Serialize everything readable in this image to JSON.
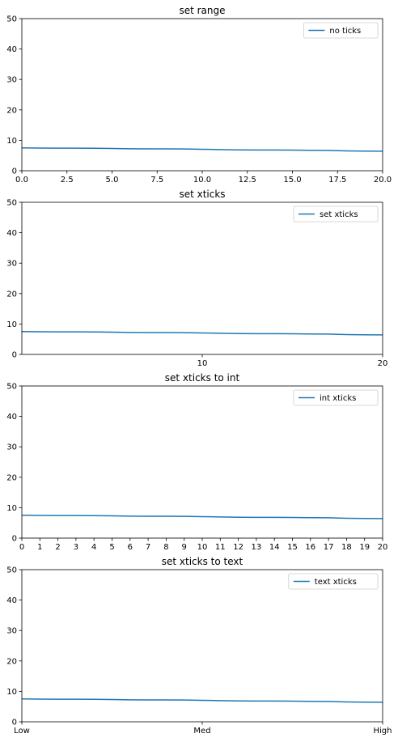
{
  "chart_data": [
    {
      "type": "line",
      "title": "set range",
      "xlabel": "",
      "ylabel": "",
      "xlim": [
        0,
        20
      ],
      "ylim": [
        0,
        50
      ],
      "xticks": [
        0,
        2.5,
        5,
        7.5,
        10,
        12.5,
        15,
        17.5,
        20
      ],
      "xticklabels": [
        "0.0",
        "2.5",
        "5.0",
        "7.5",
        "10.0",
        "12.5",
        "15.0",
        "17.5",
        "20.0"
      ],
      "yticks": [
        0,
        10,
        20,
        30,
        40,
        50
      ],
      "yticklabels": [
        "0",
        "10",
        "20",
        "30",
        "40",
        "50"
      ],
      "legend": "upper right",
      "grid": false,
      "series": [
        {
          "name": "no ticks",
          "color": "#1f77b4",
          "x": [
            0,
            1,
            2,
            3,
            4,
            5,
            6,
            7,
            8,
            9,
            10,
            11,
            12,
            13,
            14,
            15,
            16,
            17,
            18,
            19,
            20
          ],
          "values": [
            7.5,
            7.45,
            7.42,
            7.4,
            7.38,
            7.3,
            7.2,
            7.18,
            7.17,
            7.15,
            7.05,
            6.95,
            6.85,
            6.82,
            6.8,
            6.78,
            6.72,
            6.68,
            6.5,
            6.45,
            6.42
          ]
        }
      ]
    },
    {
      "type": "line",
      "title": "set xticks",
      "xlabel": "",
      "ylabel": "",
      "xlim": [
        0,
        20
      ],
      "ylim": [
        0,
        50
      ],
      "xticks": [
        10,
        20
      ],
      "xticklabels": [
        "10",
        "20"
      ],
      "yticks": [
        0,
        10,
        20,
        30,
        40,
        50
      ],
      "yticklabels": [
        "0",
        "10",
        "20",
        "30",
        "40",
        "50"
      ],
      "legend": "upper right",
      "grid": false,
      "series": [
        {
          "name": "set xticks",
          "color": "#1f77b4",
          "x": [
            0,
            1,
            2,
            3,
            4,
            5,
            6,
            7,
            8,
            9,
            10,
            11,
            12,
            13,
            14,
            15,
            16,
            17,
            18,
            19,
            20
          ],
          "values": [
            7.5,
            7.45,
            7.42,
            7.4,
            7.38,
            7.3,
            7.2,
            7.18,
            7.17,
            7.15,
            7.05,
            6.95,
            6.85,
            6.82,
            6.8,
            6.78,
            6.72,
            6.68,
            6.5,
            6.45,
            6.42
          ]
        }
      ]
    },
    {
      "type": "line",
      "title": "set xticks to int",
      "xlabel": "",
      "ylabel": "",
      "xlim": [
        0,
        20
      ],
      "ylim": [
        0,
        50
      ],
      "xticks": [
        0,
        1,
        2,
        3,
        4,
        5,
        6,
        7,
        8,
        9,
        10,
        11,
        12,
        13,
        14,
        15,
        16,
        17,
        18,
        19,
        20
      ],
      "xticklabels": [
        "0",
        "1",
        "2",
        "3",
        "4",
        "5",
        "6",
        "7",
        "8",
        "9",
        "10",
        "11",
        "12",
        "13",
        "14",
        "15",
        "16",
        "17",
        "18",
        "19",
        "20"
      ],
      "yticks": [
        0,
        10,
        20,
        30,
        40,
        50
      ],
      "yticklabels": [
        "0",
        "10",
        "20",
        "30",
        "40",
        "50"
      ],
      "legend": "upper right",
      "grid": false,
      "series": [
        {
          "name": "int xticks",
          "color": "#1f77b4",
          "x": [
            0,
            1,
            2,
            3,
            4,
            5,
            6,
            7,
            8,
            9,
            10,
            11,
            12,
            13,
            14,
            15,
            16,
            17,
            18,
            19,
            20
          ],
          "values": [
            7.5,
            7.45,
            7.42,
            7.4,
            7.38,
            7.3,
            7.2,
            7.18,
            7.17,
            7.15,
            7.05,
            6.95,
            6.85,
            6.82,
            6.8,
            6.78,
            6.72,
            6.68,
            6.5,
            6.45,
            6.42
          ]
        }
      ]
    },
    {
      "type": "line",
      "title": "set xticks to text",
      "xlabel": "",
      "ylabel": "",
      "xlim": [
        0,
        20
      ],
      "ylim": [
        0,
        50
      ],
      "xticks": [
        0,
        10,
        20
      ],
      "xticklabels": [
        "Low",
        "Med",
        "High"
      ],
      "yticks": [
        0,
        10,
        20,
        30,
        40,
        50
      ],
      "yticklabels": [
        "0",
        "10",
        "20",
        "30",
        "40",
        "50"
      ],
      "legend": "upper right",
      "grid": false,
      "series": [
        {
          "name": "text xticks",
          "color": "#1f77b4",
          "x": [
            0,
            1,
            2,
            3,
            4,
            5,
            6,
            7,
            8,
            9,
            10,
            11,
            12,
            13,
            14,
            15,
            16,
            17,
            18,
            19,
            20
          ],
          "values": [
            7.5,
            7.45,
            7.42,
            7.4,
            7.38,
            7.3,
            7.2,
            7.18,
            7.17,
            7.15,
            7.05,
            6.95,
            6.85,
            6.82,
            6.8,
            6.78,
            6.72,
            6.68,
            6.5,
            6.45,
            6.42
          ]
        }
      ]
    }
  ]
}
